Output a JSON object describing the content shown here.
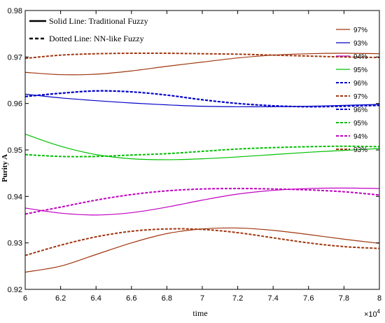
{
  "chart_data": {
    "type": "line",
    "title": "",
    "xlabel": "time",
    "ylabel": "Purity A",
    "x_multiplier": "×10",
    "x_multiplier_exp": "4",
    "xlim": [
      60000,
      80000
    ],
    "ylim": [
      0.92,
      0.98
    ],
    "grid": false,
    "xticks": [
      60000,
      62000,
      64000,
      66000,
      68000,
      70000,
      72000,
      74000,
      76000,
      78000,
      80000
    ],
    "xtick_labels": [
      "6",
      "6.2",
      "6.4",
      "6.6",
      "6.8",
      "7",
      "7.2",
      "7.4",
      "7.6",
      "7.8",
      "8"
    ],
    "yticks": [
      0.92,
      0.93,
      0.94,
      0.95,
      0.96,
      0.97,
      0.98
    ],
    "ytick_labels": [
      "0.92",
      "0.93",
      "0.94",
      "0.95",
      "0.96",
      "0.97",
      "0.98"
    ],
    "annotations": [
      {
        "text": "Solid Line: Traditional Fuzzy",
        "style": "solid"
      },
      {
        "text": "Dotted Line: NN-like Fuzzy",
        "style": "dotted"
      }
    ],
    "legend_position": "top-right",
    "x": [
      60000,
      62000,
      64000,
      66000,
      68000,
      70000,
      72000,
      74000,
      76000,
      78000,
      80000
    ],
    "series": [
      {
        "name": "97%",
        "color": "#a0360f",
        "style": "solid",
        "values": [
          0.9667,
          0.9662,
          0.9663,
          0.967,
          0.968,
          0.9689,
          0.9698,
          0.9704,
          0.9707,
          0.9708,
          0.9707
        ]
      },
      {
        "name": "93%",
        "color": "#0000c8",
        "style": "solid",
        "values": [
          0.962,
          0.9612,
          0.9606,
          0.9601,
          0.9597,
          0.9594,
          0.9593,
          0.9593,
          0.9594,
          0.9596,
          0.9598
        ]
      },
      {
        "name": "94%",
        "color": "#c000c0",
        "style": "solid",
        "values": [
          0.9375,
          0.9364,
          0.936,
          0.9365,
          0.9377,
          0.9392,
          0.9405,
          0.9413,
          0.9417,
          0.9418,
          0.9417
        ]
      },
      {
        "name": "95%",
        "color": "#00c000",
        "style": "solid",
        "values": [
          0.9534,
          0.9508,
          0.949,
          0.9481,
          0.9479,
          0.9481,
          0.9485,
          0.949,
          0.9495,
          0.9499,
          0.9503
        ]
      },
      {
        "name": "96%",
        "color": "#0000c8",
        "style": "dotted",
        "values": [
          0.9615,
          0.9622,
          0.9627,
          0.9625,
          0.9618,
          0.9608,
          0.96,
          0.9595,
          0.9593,
          0.9594,
          0.9596
        ]
      },
      {
        "name": "97%",
        "color": "#a0360f",
        "style": "dotted",
        "values": [
          0.9697,
          0.9704,
          0.9707,
          0.9708,
          0.9708,
          0.9707,
          0.9706,
          0.9704,
          0.9702,
          0.97,
          0.9699
        ]
      },
      {
        "name": "96%",
        "color": "#0000c8",
        "style": "dotted",
        "values": [
          0.9615,
          0.9622,
          0.9627,
          0.9625,
          0.9618,
          0.9608,
          0.96,
          0.9595,
          0.9593,
          0.9594,
          0.9596
        ]
      },
      {
        "name": "95%",
        "color": "#00c000",
        "style": "dotted",
        "values": [
          0.949,
          0.9486,
          0.9486,
          0.9489,
          0.9492,
          0.9497,
          0.9502,
          0.9505,
          0.9507,
          0.9508,
          0.9507
        ]
      },
      {
        "name": "94%",
        "color": "#c000c0",
        "style": "dotted",
        "values": [
          0.9362,
          0.9377,
          0.9392,
          0.9404,
          0.9412,
          0.9416,
          0.9417,
          0.9416,
          0.9414,
          0.941,
          0.9403
        ]
      },
      {
        "name": "93%",
        "color": "#a0360f",
        "style": "dotted",
        "values": [
          0.9273,
          0.9295,
          0.9313,
          0.9325,
          0.933,
          0.9329,
          0.9322,
          0.9311,
          0.93,
          0.9292,
          0.9288
        ]
      },
      {
        "name": "",
        "color": "#a0360f",
        "style": "solid",
        "values": [
          0.9237,
          0.925,
          0.9275,
          0.93,
          0.932,
          0.933,
          0.9332,
          0.9327,
          0.9318,
          0.9308,
          0.9299
        ]
      }
    ]
  }
}
